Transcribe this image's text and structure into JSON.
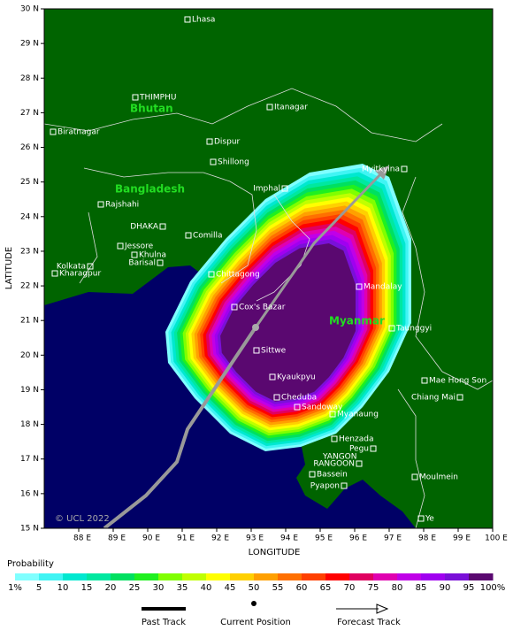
{
  "map": {
    "lat_ticks": [
      {
        "value": 15,
        "label": "15 N"
      },
      {
        "value": 16,
        "label": "16 N"
      },
      {
        "value": 17,
        "label": "17 N"
      },
      {
        "value": 18,
        "label": "18 N"
      },
      {
        "value": 19,
        "label": "19 N"
      },
      {
        "value": 20,
        "label": "20 N"
      },
      {
        "value": 21,
        "label": "21 N"
      },
      {
        "value": 22,
        "label": "22 N"
      },
      {
        "value": 23,
        "label": "23 N"
      },
      {
        "value": 24,
        "label": "24 N"
      },
      {
        "value": 25,
        "label": "25 N"
      },
      {
        "value": 26,
        "label": "26 N"
      },
      {
        "value": 27,
        "label": "27 N"
      },
      {
        "value": 28,
        "label": "28 N"
      },
      {
        "value": 29,
        "label": "29 N"
      },
      {
        "value": 30,
        "label": "30 N"
      }
    ],
    "lon_ticks": [
      {
        "value": 88,
        "label": "88 E"
      },
      {
        "value": 89,
        "label": "89 E"
      },
      {
        "value": 90,
        "label": "90 E"
      },
      {
        "value": 91,
        "label": "91 E"
      },
      {
        "value": 92,
        "label": "92 E"
      },
      {
        "value": 93,
        "label": "93 E"
      },
      {
        "value": 94,
        "label": "94 E"
      },
      {
        "value": 95,
        "label": "95 E"
      },
      {
        "value": 96,
        "label": "96 E"
      },
      {
        "value": 97,
        "label": "97 E"
      },
      {
        "value": 98,
        "label": "98 E"
      },
      {
        "value": 99,
        "label": "99 E"
      },
      {
        "value": 100,
        "label": "100 E"
      }
    ],
    "x_label": "LONGITUDE",
    "y_label": "LATITUDE",
    "regions": [
      "Bhutan",
      "Bangladesh",
      "Myanmar"
    ],
    "cities": [
      "Lhasa",
      "THIMPHU",
      "Itanagar",
      "Biratnagar",
      "Dispur",
      "Shillong",
      "Imphal",
      "Myitkyina",
      "Rajshahi",
      "DHAKA",
      "Comilla",
      "Jessore",
      "Khulna",
      "Barisal",
      "Kolkata",
      "Kharagpur",
      "Chittagong",
      "Mandalay",
      "Cox's Bazar",
      "Taunggyi",
      "Sittwe",
      "Kyaukpyu",
      "Mae Hong Son",
      "Cheduba",
      "Chiang Mai",
      "Sandoway",
      "Myanaung",
      "Henzada",
      "Pegu",
      "YANGON",
      "RANGOON",
      "Bassein",
      "Moulmein",
      "Pyapon",
      "Ye"
    ],
    "credit": "© UCL 2022"
  },
  "legend": {
    "title": "Probability",
    "levels": [
      {
        "value": 1,
        "label": "1%"
      },
      5,
      10,
      15,
      20,
      25,
      30,
      35,
      40,
      45,
      50,
      55,
      60,
      65,
      70,
      75,
      80,
      85,
      90,
      95,
      {
        "value": 100,
        "label": "100%"
      }
    ],
    "colors": [
      "#80ffff",
      "#40f4f4",
      "#00e8d0",
      "#00e8a0",
      "#00e060",
      "#20f020",
      "#80ff00",
      "#c0ff00",
      "#ffff00",
      "#ffd000",
      "#ffa000",
      "#ff7000",
      "#ff4000",
      "#ff0000",
      "#e00060",
      "#e000b0",
      "#c000e8",
      "#a000f0",
      "#7a10d8",
      "#5a0870"
    ]
  },
  "key": {
    "past_track": "Past Track",
    "current_position": "Current Position",
    "forecast_track": "Forecast Track"
  }
}
